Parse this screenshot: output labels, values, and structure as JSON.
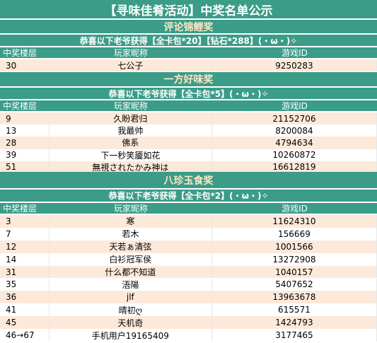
{
  "title": "【寻味佳肴活动】中奖名单公示",
  "columns": [
    "中奖楼层",
    "玩家昵称",
    "游戏ID"
  ],
  "sections": [
    {
      "name": "评论锦鲤奖",
      "congrats": "恭喜以下老爷获得【全卡包*20】【钻石*288】(・ω・)✧",
      "rows": [
        [
          "30",
          "七公子",
          "9250283"
        ]
      ]
    },
    {
      "name": "一方好味奖",
      "congrats": "恭喜以下老爷获得【全卡包*5】(・ω・)✧",
      "rows": [
        [
          "9",
          "久盼君归",
          "21152706"
        ],
        [
          "13",
          "我最帅",
          "8200084"
        ],
        [
          "28",
          "佛系",
          "4794634"
        ],
        [
          "39",
          "下一秒笑靥如花",
          "10260872"
        ],
        [
          "51",
          "無視されたかみ神は",
          "16612819"
        ]
      ]
    },
    {
      "name": "八珍玉食奖",
      "congrats": "恭喜以下老爷获得【全卡包*2】(・ω・)✧",
      "rows": [
        [
          "3",
          "寒",
          "11624310"
        ],
        [
          "7",
          "若木",
          "156669"
        ],
        [
          "12",
          "天若ぁ清弦",
          "1001566"
        ],
        [
          "14",
          "白衫冠军侯",
          "13272908"
        ],
        [
          "31",
          "什么都不知道",
          "1040157"
        ],
        [
          "35",
          "浯陽",
          "5407652"
        ],
        [
          "36",
          "jlf",
          "13963678"
        ],
        [
          "41",
          "晴初ღ",
          "615571"
        ],
        [
          "45",
          "天机奇",
          "1424793"
        ],
        [
          "46→67",
          "手机用户19165409",
          "3177465"
        ]
      ]
    }
  ]
}
